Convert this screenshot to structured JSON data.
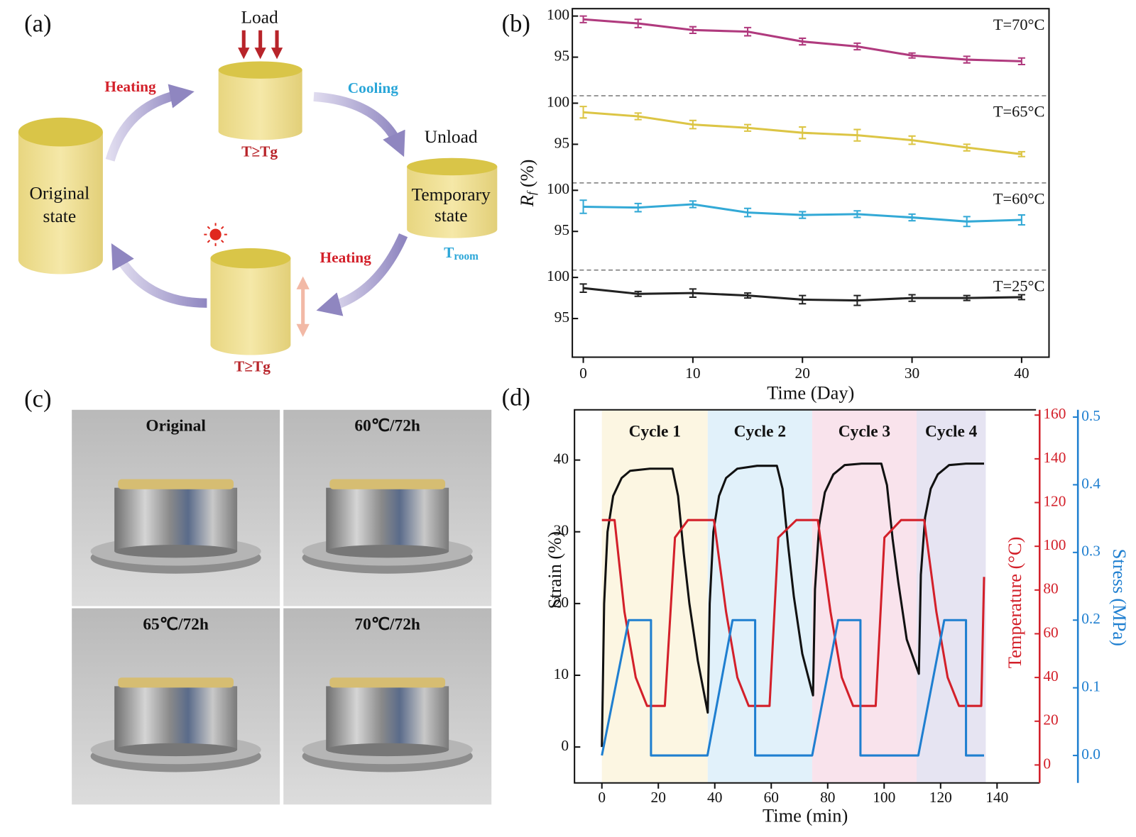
{
  "diagram": {
    "panel": "(a)",
    "load": "Load",
    "heating_top": "Heating",
    "cooling": "Cooling",
    "unload": "Unload",
    "original_state": [
      "Original",
      "state"
    ],
    "temporary_state": [
      "Temporary",
      "state"
    ],
    "tg_top": "T≥Tg",
    "tg_bottom": "T≥Tg",
    "t_room": {
      "symbol": "T",
      "subscript": "room"
    },
    "heating_bottom": "Heating"
  },
  "photos": {
    "panel": "(c)",
    "labels": [
      "Original",
      "60℃/72h",
      "65℃/72h",
      "70℃/72h"
    ]
  },
  "chart_data": [
    {
      "type": "line",
      "panel": "(b)",
      "x_label": "Time (Day)",
      "y_label": {
        "symbol": "R",
        "subscript": "f",
        "unit": "(%)"
      },
      "x": [
        0,
        5,
        10,
        15,
        20,
        25,
        30,
        35,
        40
      ],
      "xlim": [
        -1,
        42.5
      ],
      "xticks": [
        0,
        10,
        20,
        30,
        40
      ],
      "series": [
        {
          "name": "T=70°C",
          "color": "#b03a7e",
          "ylim": [
            90.3,
            100.9
          ],
          "yticks": [
            95,
            100
          ],
          "values": [
            99.6,
            99.1,
            98.3,
            98.1,
            96.9,
            96.3,
            95.2,
            94.7,
            94.5
          ],
          "errors": [
            0.4,
            0.5,
            0.4,
            0.5,
            0.4,
            0.4,
            0.3,
            0.4,
            0.4
          ]
        },
        {
          "name": "T=65°C",
          "color": "#dcc545",
          "ylim": [
            90.3,
            100.9
          ],
          "yticks": [
            95,
            100
          ],
          "values": [
            98.9,
            98.4,
            97.4,
            97.0,
            96.4,
            96.1,
            95.5,
            94.6,
            93.8
          ],
          "errors": [
            0.7,
            0.4,
            0.5,
            0.4,
            0.7,
            0.7,
            0.5,
            0.4,
            0.3
          ]
        },
        {
          "name": "T=60°C",
          "color": "#33a9d6",
          "ylim": [
            90.3,
            100.9
          ],
          "yticks": [
            95,
            100
          ],
          "values": [
            98.0,
            97.9,
            98.3,
            97.3,
            97.0,
            97.1,
            96.7,
            96.2,
            96.4
          ],
          "errors": [
            0.8,
            0.5,
            0.4,
            0.5,
            0.4,
            0.4,
            0.4,
            0.6,
            0.6
          ]
        },
        {
          "name": "T=25°C",
          "color": "#222222",
          "ylim": [
            90.3,
            100.9
          ],
          "yticks": [
            95,
            100
          ],
          "values": [
            98.7,
            98.0,
            98.1,
            97.8,
            97.3,
            97.2,
            97.5,
            97.5,
            97.6
          ],
          "errors": [
            0.5,
            0.3,
            0.5,
            0.3,
            0.5,
            0.6,
            0.4,
            0.3,
            0.3
          ]
        }
      ]
    },
    {
      "type": "line",
      "panel": "(d)",
      "x_label": "Time (min)",
      "y_label": "Strain (%)",
      "y2_label": "Temperature (°C)",
      "y3_label": "Stress (MPa)",
      "xlim": [
        -9.7,
        153.8
      ],
      "xticks": [
        0,
        20,
        40,
        60,
        80,
        100,
        120,
        140
      ],
      "ylim": [
        -5,
        47
      ],
      "yticks": [
        0,
        10,
        20,
        30,
        40
      ],
      "y2lim": [
        -8.2,
        162.4
      ],
      "y2ticks": [
        0,
        20,
        40,
        60,
        80,
        100,
        120,
        140,
        160
      ],
      "y2color": "#d3202a",
      "y3lim": [
        -0.0405,
        0.5107
      ],
      "y3ticks": [
        {
          "value": 0,
          "label": "0.0"
        },
        {
          "value": 0.1,
          "label": "0.1"
        },
        {
          "value": 0.2,
          "label": "0.2"
        },
        {
          "value": 0.3,
          "label": "0.3"
        },
        {
          "value": 0.4,
          "label": "0.4"
        },
        {
          "value": 0.5,
          "label": "0.5"
        }
      ],
      "y3color": "#1f7fd0",
      "regions": [
        {
          "label": "Cycle 1",
          "start": 0,
          "end": 37.5,
          "color": "#fcf6e2"
        },
        {
          "label": "Cycle 2",
          "start": 37.5,
          "end": 74.5,
          "color": "#e1f1fa"
        },
        {
          "label": "Cycle 3",
          "start": 74.5,
          "end": 111.5,
          "color": "#f9e3ec"
        },
        {
          "label": "Cycle 4",
          "start": 111.5,
          "end": 136,
          "color": "#e6e4f2"
        }
      ],
      "series": [
        {
          "color": "#111111",
          "x": [
            0,
            0.8,
            2,
            4,
            7,
            10,
            17,
            25,
            27,
            29,
            31,
            34,
            37.5,
            38.2,
            39.5,
            41.5,
            44,
            48,
            55,
            62,
            64,
            66,
            68,
            71,
            74.8,
            75.5,
            77,
            79,
            82,
            86,
            92,
            99,
            101,
            103,
            105,
            108,
            112.3,
            113,
            114.5,
            116.5,
            119,
            123,
            129,
            135.4
          ],
          "values": [
            0,
            20,
            30,
            35,
            37.5,
            38.5,
            38.8,
            38.8,
            35,
            27,
            20,
            12,
            4.8,
            20,
            30,
            35,
            37.5,
            38.8,
            39.2,
            39.2,
            36,
            28,
            21,
            13,
            7.2,
            22,
            31,
            35.5,
            38,
            39.3,
            39.5,
            39.5,
            36.5,
            29,
            23,
            15,
            10.2,
            24,
            32,
            36,
            38,
            39.3,
            39.5,
            39.5
          ]
        },
        {
          "color": "#d3202a",
          "axis": "y2",
          "x": [
            0,
            4.5,
            8,
            12,
            16,
            22.3,
            25.9,
            30.5,
            39.7,
            44,
            48,
            52,
            59.4,
            62.5,
            68.9,
            76.5,
            81,
            85,
            89,
            97,
            100.1,
            106,
            114.2,
            118.5,
            122.5,
            126.5,
            134.4,
            135.4
          ],
          "values": [
            112,
            112,
            70,
            40,
            27,
            27,
            104,
            112,
            112,
            70,
            40,
            27,
            27,
            104,
            112,
            112,
            70,
            40,
            27,
            27,
            104,
            112,
            112,
            70,
            40,
            27,
            27,
            86
          ]
        },
        {
          "color": "#1f7fd0",
          "axis": "y3",
          "x": [
            0,
            9.5,
            17.4,
            17.4,
            37.4,
            46.3,
            54.3,
            54.3,
            74.5,
            83.7,
            91.6,
            91.6,
            112.1,
            121.3,
            129,
            129,
            135.4
          ],
          "values": [
            0,
            0.2,
            0.2,
            0,
            0,
            0.2,
            0.2,
            0,
            0,
            0.2,
            0.2,
            0,
            0,
            0.2,
            0.2,
            0,
            0
          ]
        }
      ]
    }
  ]
}
